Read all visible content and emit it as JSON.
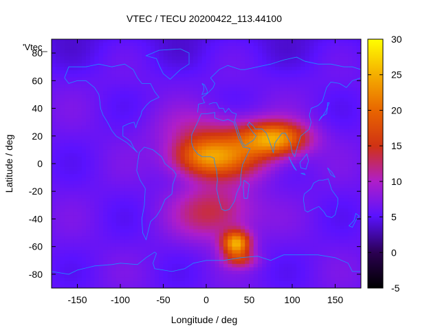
{
  "chart_data": {
    "type": "heatmap",
    "title": "VTEC / TECU 20200422_113.44100",
    "xlabel": "Longitude / deg",
    "ylabel": "Latitude / deg",
    "series_label": "'Vtec_",
    "xlim": [
      -180,
      180
    ],
    "ylim": [
      -90,
      90
    ],
    "x_ticks": [
      -150,
      -100,
      -50,
      0,
      50,
      100,
      150
    ],
    "y_ticks": [
      -80,
      -60,
      -40,
      -20,
      0,
      20,
      40,
      60,
      80
    ],
    "colorbar": {
      "min": -5,
      "max": 30,
      "ticks": [
        -5,
        0,
        5,
        10,
        15,
        20,
        25,
        30
      ]
    },
    "background_value": 6,
    "hotspots": [
      {
        "lon": 80,
        "lat": 18,
        "amp": 17,
        "slon": 38,
        "slat": 12
      },
      {
        "lon": -5,
        "lat": 5,
        "amp": 11,
        "slon": 38,
        "slat": 14
      },
      {
        "lon": 30,
        "lat": 5,
        "amp": 9,
        "slon": 50,
        "slat": 16
      },
      {
        "lon": 35,
        "lat": -58,
        "amp": 18,
        "slon": 16,
        "slat": 9
      },
      {
        "lon": 10,
        "lat": -35,
        "amp": 8,
        "slon": 45,
        "slat": 20
      },
      {
        "lon": 40,
        "lat": -70,
        "amp": 6,
        "slon": 20,
        "slat": 6
      },
      {
        "lon": 0,
        "lat": 25,
        "amp": 4,
        "slon": 60,
        "slat": 15
      }
    ],
    "coastline_color": "#1e90ff"
  }
}
